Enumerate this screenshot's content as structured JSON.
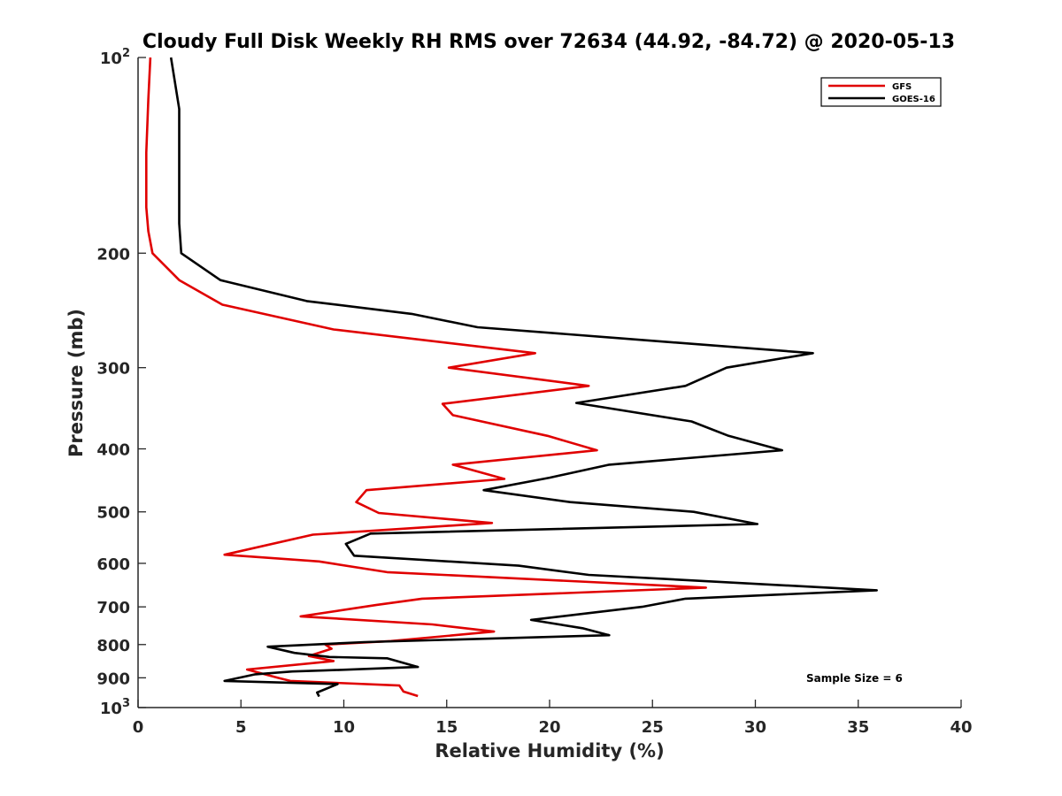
{
  "chart_data": {
    "type": "line",
    "title": "Cloudy Full Disk Weekly RH RMS over 72634 (44.92, -84.72) @ 2020-05-13",
    "xlabel": "Relative Humidity (%)",
    "ylabel": "Pressure (mb)",
    "xlim": [
      0,
      40
    ],
    "ylim": [
      100,
      1000
    ],
    "yscale": "log",
    "y_reversed": true,
    "x_ticks": [
      "0",
      "5",
      "10",
      "15",
      "20",
      "25",
      "30",
      "35",
      "40"
    ],
    "y_ticks": [
      {
        "value": 100,
        "base": "10",
        "exp": "2"
      },
      {
        "value": 200,
        "label": "200"
      },
      {
        "value": 300,
        "label": "300"
      },
      {
        "value": 400,
        "label": "400"
      },
      {
        "value": 500,
        "label": "500"
      },
      {
        "value": 600,
        "label": "600"
      },
      {
        "value": 700,
        "label": "700"
      },
      {
        "value": 800,
        "label": "800"
      },
      {
        "value": 900,
        "label": "900"
      },
      {
        "value": 1000,
        "base": "10",
        "exp": "3"
      }
    ],
    "grid": false,
    "legend_position": "top-right",
    "annotation": "Sample Size = 6",
    "series": [
      {
        "name": "GFS",
        "color": "#e00000",
        "points": [
          [
            0.6,
            100
          ],
          [
            0.5,
            116
          ],
          [
            0.4,
            140
          ],
          [
            0.4,
            170
          ],
          [
            0.5,
            185
          ],
          [
            0.7,
            200
          ],
          [
            2.0,
            220
          ],
          [
            4.1,
            240
          ],
          [
            9.5,
            262
          ],
          [
            19.3,
            285
          ],
          [
            15.1,
            300
          ],
          [
            21.9,
            320
          ],
          [
            14.8,
            341
          ],
          [
            15.3,
            355
          ],
          [
            19.9,
            382
          ],
          [
            22.3,
            402
          ],
          [
            15.3,
            423
          ],
          [
            17.8,
            445
          ],
          [
            11.1,
            463
          ],
          [
            10.6,
            483
          ],
          [
            11.7,
            502
          ],
          [
            17.2,
            520
          ],
          [
            8.5,
            542
          ],
          [
            4.2,
            582
          ],
          [
            8.8,
            596
          ],
          [
            12.1,
            619
          ],
          [
            27.6,
            654
          ],
          [
            13.8,
            680
          ],
          [
            11.6,
            695
          ],
          [
            7.9,
            724
          ],
          [
            14.3,
            745
          ],
          [
            17.3,
            764
          ],
          [
            12.3,
            790
          ],
          [
            9.1,
            800
          ],
          [
            9.4,
            812
          ],
          [
            8.3,
            833
          ],
          [
            9.5,
            848
          ],
          [
            5.3,
            874
          ],
          [
            6.8,
            900
          ],
          [
            7.4,
            910
          ],
          [
            12.7,
            925
          ],
          [
            12.9,
            945
          ],
          [
            13.6,
            960
          ]
        ]
      },
      {
        "name": "GOES-16",
        "color": "#000000",
        "points": [
          [
            1.6,
            100
          ],
          [
            2.0,
            120
          ],
          [
            2.0,
            150
          ],
          [
            2.0,
            180
          ],
          [
            2.1,
            200
          ],
          [
            4.0,
            220
          ],
          [
            8.2,
            237
          ],
          [
            13.3,
            248
          ],
          [
            16.5,
            260
          ],
          [
            32.8,
            285
          ],
          [
            28.6,
            300
          ],
          [
            26.6,
            320
          ],
          [
            21.3,
            340
          ],
          [
            26.9,
            363
          ],
          [
            28.7,
            382
          ],
          [
            31.3,
            402
          ],
          [
            22.9,
            423
          ],
          [
            20.0,
            443
          ],
          [
            16.8,
            463
          ],
          [
            21.0,
            483
          ],
          [
            27.0,
            500
          ],
          [
            30.1,
            522
          ],
          [
            11.3,
            540
          ],
          [
            10.1,
            560
          ],
          [
            10.5,
            584
          ],
          [
            18.5,
            605
          ],
          [
            21.9,
            625
          ],
          [
            35.9,
            660
          ],
          [
            26.6,
            680
          ],
          [
            24.5,
            700
          ],
          [
            19.1,
            733
          ],
          [
            21.6,
            755
          ],
          [
            22.9,
            774
          ],
          [
            11.0,
            793
          ],
          [
            6.3,
            806
          ],
          [
            7.6,
            824
          ],
          [
            9.3,
            836
          ],
          [
            12.1,
            840
          ],
          [
            13.6,
            866
          ],
          [
            9.0,
            877
          ],
          [
            7.5,
            880
          ],
          [
            5.7,
            889
          ],
          [
            4.2,
            910
          ],
          [
            9.7,
            920
          ],
          [
            8.7,
            948
          ],
          [
            8.8,
            962
          ]
        ]
      }
    ]
  }
}
